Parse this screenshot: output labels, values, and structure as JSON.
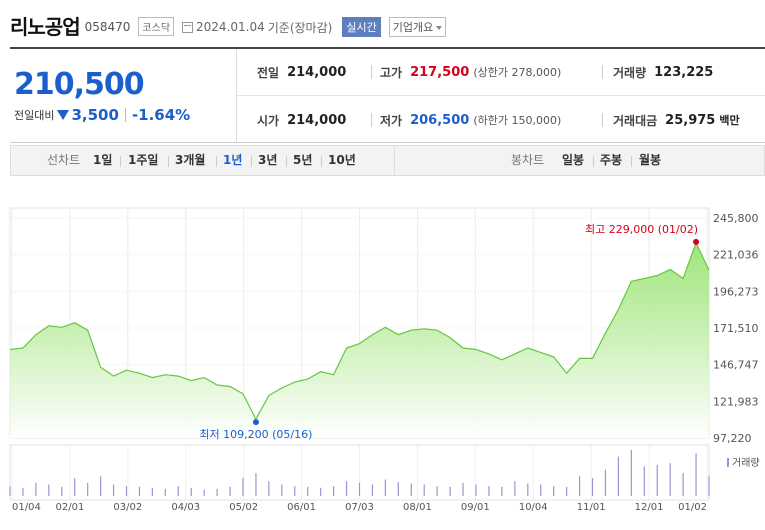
{
  "header": {
    "name": "리노공업",
    "code": "058470",
    "market": "코스닥",
    "date": "2024.01.04",
    "basis": "기준(장마감)",
    "realtime": "실시간",
    "company_info": "기업개요"
  },
  "price": {
    "current": "210,500",
    "change_label": "전일대비",
    "change": "3,500",
    "change_pct": "-1.64%",
    "direction": "down"
  },
  "stats": {
    "prev_label": "전일",
    "prev": "214,000",
    "high_label": "고가",
    "high": "217,500",
    "upper_limit": "(상한가 278,000)",
    "volume_label": "거래량",
    "volume": "123,225",
    "open_label": "시가",
    "open": "214,000",
    "low_label": "저가",
    "low": "206,500",
    "lower_limit": "(하한가 150,000)",
    "amount_label": "거래대금",
    "amount": "25,975",
    "amount_unit": "백만"
  },
  "periods": {
    "line_label": "선차트",
    "items": [
      "1일",
      "1주일",
      "3개월",
      "1년",
      "3년",
      "5년",
      "10년"
    ],
    "selected": "1년",
    "candle_label": "봉차트",
    "candle_items": [
      "일봉",
      "주봉",
      "월봉"
    ]
  },
  "colors": {
    "up": "#d5001c",
    "down": "#1b5fcc",
    "line": "#66c73c",
    "volume": "#a88fd3"
  },
  "chart_data": {
    "type": "area",
    "ylim": [
      97220,
      245800
    ],
    "yticks": [
      "245,800",
      "221,036",
      "196,273",
      "171,510",
      "146,747",
      "121,983",
      "97,220"
    ],
    "xticks": [
      "01/04",
      "02/01",
      "03/02",
      "04/03",
      "05/02",
      "06/01",
      "07/03",
      "08/01",
      "09/01",
      "10/04",
      "11/01",
      "12/01",
      "01/02"
    ],
    "x": [
      "01/04",
      "01/11",
      "01/18",
      "01/25",
      "02/01",
      "02/08",
      "02/15",
      "02/22",
      "03/02",
      "03/09",
      "03/16",
      "03/23",
      "03/30",
      "04/06",
      "04/13",
      "04/20",
      "04/27",
      "05/02",
      "05/09",
      "05/16",
      "05/23",
      "05/30",
      "06/06",
      "06/13",
      "06/20",
      "06/27",
      "07/03",
      "07/10",
      "07/17",
      "07/24",
      "07/31",
      "08/07",
      "08/14",
      "08/21",
      "08/28",
      "09/01",
      "09/08",
      "09/15",
      "09/22",
      "09/29",
      "10/04",
      "10/11",
      "10/18",
      "10/25",
      "11/01",
      "11/08",
      "11/15",
      "11/22",
      "11/29",
      "12/06",
      "12/13",
      "12/20",
      "12/27",
      "01/02",
      "01/04"
    ],
    "y": [
      157000,
      158000,
      167000,
      173000,
      172000,
      175000,
      170000,
      145000,
      139000,
      143000,
      141000,
      138000,
      140000,
      139000,
      136000,
      138000,
      133000,
      132000,
      127000,
      110000,
      126000,
      131000,
      135000,
      137000,
      142000,
      140000,
      158000,
      161000,
      167000,
      172000,
      167000,
      170000,
      171000,
      170000,
      165000,
      158000,
      157000,
      154000,
      150000,
      154000,
      158000,
      155000,
      152000,
      141000,
      151000,
      151000,
      168000,
      184000,
      203000,
      205000,
      207000,
      211000,
      205000,
      229000,
      210500
    ],
    "volume": [
      30,
      25,
      40,
      35,
      28,
      55,
      40,
      60,
      35,
      30,
      28,
      25,
      22,
      30,
      25,
      20,
      22,
      28,
      55,
      70,
      45,
      35,
      30,
      28,
      25,
      30,
      45,
      40,
      35,
      50,
      42,
      38,
      35,
      30,
      28,
      40,
      35,
      30,
      28,
      45,
      38,
      35,
      30,
      28,
      60,
      55,
      80,
      120,
      140,
      90,
      95,
      100,
      70,
      130,
      60
    ],
    "volume_label": "거래량",
    "annotations": {
      "max_label": "최고 229,000 (01/02)",
      "min_label": "최저 109,200 (05/16)"
    }
  }
}
